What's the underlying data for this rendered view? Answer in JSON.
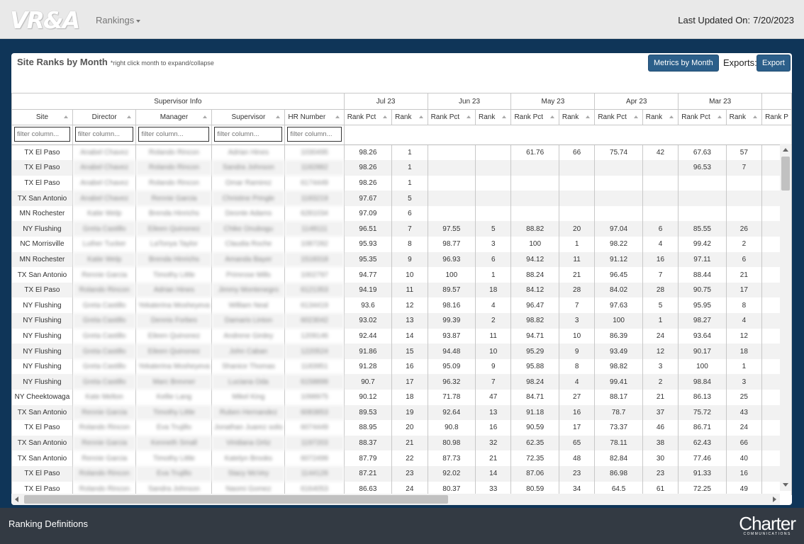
{
  "nav": {
    "logo": "VR&A",
    "rankings_label": "Rankings",
    "last_updated_label": "Last Updated On:",
    "last_updated_value": "7/20/2023"
  },
  "panel": {
    "title": "Site Ranks by Month",
    "note": "*right click month to expand/collapse",
    "metrics_button": "Metrics by Month",
    "exports_label": "Exports:",
    "export_button": "Export"
  },
  "table": {
    "group_info": "Supervisor Info",
    "months": [
      "Jul 23",
      "Jun 23",
      "May 23",
      "Apr 23",
      "Mar 23"
    ],
    "columns": {
      "site": "Site",
      "director": "Director",
      "manager": "Manager",
      "supervisor": "Supervisor",
      "hr": "HR Number",
      "rank_pct": "Rank Pct",
      "rank": "Rank",
      "partial": "Rank P"
    },
    "filter_placeholder": "filter column...",
    "rows": [
      {
        "site": "TX El Paso",
        "director": "Anabel Chavez",
        "manager": "Rolando Rincon",
        "supervisor": "Adrian Hines",
        "hr": "1030495",
        "v": [
          "98.26",
          "1",
          "",
          "",
          "61.76",
          "66",
          "75.74",
          "42",
          "67.63",
          "57"
        ]
      },
      {
        "site": "TX El Paso",
        "director": "Anabel Chavez",
        "manager": "Rolando Rincon",
        "supervisor": "Sandra Johnson",
        "hr": "1182882",
        "v": [
          "98.26",
          "1",
          "",
          "",
          "",
          "",
          "",
          "",
          "96.53",
          "7"
        ]
      },
      {
        "site": "TX El Paso",
        "director": "Anabel Chavez",
        "manager": "Rolando Rincon",
        "supervisor": "Omar Ramirez",
        "hr": "6174449",
        "v": [
          "98.26",
          "1",
          "",
          "",
          "",
          "",
          "",
          "",
          "",
          ""
        ]
      },
      {
        "site": "TX San Antonio",
        "director": "Anabel Chavez",
        "manager": "Rennie Garcia",
        "supervisor": "Christine Pringle",
        "hr": "1183219",
        "v": [
          "97.67",
          "5",
          "",
          "",
          "",
          "",
          "",
          "",
          "",
          ""
        ]
      },
      {
        "site": "MN Rochester",
        "director": "Katie Welp",
        "manager": "Brenda Hinrichs",
        "supervisor": "Deonte Adams",
        "hr": "6281034",
        "v": [
          "97.09",
          "6",
          "",
          "",
          "",
          "",
          "",
          "",
          "",
          ""
        ]
      },
      {
        "site": "NY Flushing",
        "director": "Greta Castillo",
        "manager": "Eileen Quinonez",
        "supervisor": "Chike Onubogu",
        "hr": "1148111",
        "v": [
          "96.51",
          "7",
          "97.55",
          "5",
          "88.82",
          "20",
          "97.04",
          "6",
          "85.55",
          "26"
        ]
      },
      {
        "site": "NC Morrisville",
        "director": "Luther Tucker",
        "manager": "LaTonya Taylor",
        "supervisor": "Claudia Roche",
        "hr": "1087282",
        "v": [
          "95.93",
          "8",
          "98.77",
          "3",
          "100",
          "1",
          "98.22",
          "4",
          "99.42",
          "2"
        ]
      },
      {
        "site": "MN Rochester",
        "director": "Katie Welp",
        "manager": "Brenda Hinrichs",
        "supervisor": "Amanda Bayer",
        "hr": "1518318",
        "v": [
          "95.35",
          "9",
          "96.93",
          "6",
          "94.12",
          "11",
          "91.12",
          "16",
          "97.11",
          "6"
        ]
      },
      {
        "site": "TX San Antonio",
        "director": "Rennie Garcia",
        "manager": "Timothy Little",
        "supervisor": "Primrose Mills",
        "hr": "1002797",
        "v": [
          "94.77",
          "10",
          "100",
          "1",
          "88.24",
          "21",
          "96.45",
          "7",
          "88.44",
          "21"
        ]
      },
      {
        "site": "TX El Paso",
        "director": "Rolando Rincon",
        "manager": "Adrian Hines",
        "supervisor": "Jimmy Montenegro",
        "hr": "6121353",
        "v": [
          "94.19",
          "11",
          "89.57",
          "18",
          "84.12",
          "28",
          "84.02",
          "28",
          "90.75",
          "17"
        ]
      },
      {
        "site": "NY Flushing",
        "director": "Greta Castillo",
        "manager": "Yekaterina Mosheyeva",
        "supervisor": "William Neal",
        "hr": "6134419",
        "v": [
          "93.6",
          "12",
          "98.16",
          "4",
          "96.47",
          "7",
          "97.63",
          "5",
          "95.95",
          "8"
        ]
      },
      {
        "site": "NY Flushing",
        "director": "Greta Castillo",
        "manager": "Dennis Forbes",
        "supervisor": "Damaris Linton",
        "hr": "6023042",
        "v": [
          "93.02",
          "13",
          "99.39",
          "2",
          "98.82",
          "3",
          "100",
          "1",
          "98.27",
          "4"
        ]
      },
      {
        "site": "NY Flushing",
        "director": "Greta Castillo",
        "manager": "Eileen Quinonez",
        "supervisor": "Andrene Girdey",
        "hr": "1209146",
        "v": [
          "92.44",
          "14",
          "93.87",
          "11",
          "94.71",
          "10",
          "86.39",
          "24",
          "93.64",
          "12"
        ]
      },
      {
        "site": "NY Flushing",
        "director": "Greta Castillo",
        "manager": "Eileen Quinonez",
        "supervisor": "John Caban",
        "hr": "1220524",
        "v": [
          "91.86",
          "15",
          "94.48",
          "10",
          "95.29",
          "9",
          "93.49",
          "12",
          "90.17",
          "18"
        ]
      },
      {
        "site": "NY Flushing",
        "director": "Greta Castillo",
        "manager": "Yekaterina Mosheyeva",
        "supervisor": "Shanice Thomas",
        "hr": "1183951",
        "v": [
          "91.28",
          "16",
          "95.09",
          "9",
          "95.88",
          "8",
          "98.82",
          "3",
          "100",
          "1"
        ]
      },
      {
        "site": "NY Flushing",
        "director": "Greta Castillo",
        "manager": "Marc Brevner",
        "supervisor": "Luciana Oda",
        "hr": "6158899",
        "v": [
          "90.7",
          "17",
          "96.32",
          "7",
          "98.24",
          "4",
          "99.41",
          "2",
          "98.84",
          "3"
        ]
      },
      {
        "site": "NY Cheektowaga",
        "director": "Kate Melton",
        "manager": "Kellie Lang",
        "supervisor": "Mikel King",
        "hr": "1098975",
        "v": [
          "90.12",
          "18",
          "71.78",
          "47",
          "84.71",
          "27",
          "88.17",
          "21",
          "86.13",
          "25"
        ]
      },
      {
        "site": "TX San Antonio",
        "director": "Rennie Garcia",
        "manager": "Timothy Little",
        "supervisor": "Ruben Hernandez",
        "hr": "6083853",
        "v": [
          "89.53",
          "19",
          "92.64",
          "13",
          "91.18",
          "16",
          "78.7",
          "37",
          "75.72",
          "43"
        ]
      },
      {
        "site": "TX El Paso",
        "director": "Rolando Rincon",
        "manager": "Eva Trujillo",
        "supervisor": "Jonathan Juarez solis",
        "hr": "6074449",
        "v": [
          "88.95",
          "20",
          "90.8",
          "16",
          "90.59",
          "17",
          "73.37",
          "46",
          "86.71",
          "24"
        ]
      },
      {
        "site": "TX San Antonio",
        "director": "Rennie Garcia",
        "manager": "Kenneth Small",
        "supervisor": "Viridiana Ortiz",
        "hr": "1197203",
        "v": [
          "88.37",
          "21",
          "80.98",
          "32",
          "62.35",
          "65",
          "78.11",
          "38",
          "62.43",
          "66"
        ]
      },
      {
        "site": "TX San Antonio",
        "director": "Rennie Garcia",
        "manager": "Timothy Little",
        "supervisor": "Katelyn Brooks",
        "hr": "6072499",
        "v": [
          "87.79",
          "22",
          "87.73",
          "21",
          "72.35",
          "48",
          "82.84",
          "30",
          "77.46",
          "40"
        ]
      },
      {
        "site": "TX El Paso",
        "director": "Rolando Rincon",
        "manager": "Eva Trujillo",
        "supervisor": "Stacy McVey",
        "hr": "1144128",
        "v": [
          "87.21",
          "23",
          "92.02",
          "14",
          "87.06",
          "23",
          "86.98",
          "23",
          "91.33",
          "16"
        ]
      },
      {
        "site": "TX El Paso",
        "director": "Rolando Rincon",
        "manager": "Sandra Johnson",
        "supervisor": "Naomi Gomez",
        "hr": "6164053",
        "v": [
          "86.63",
          "24",
          "80.37",
          "33",
          "80.59",
          "34",
          "64.5",
          "61",
          "72.25",
          "49"
        ]
      }
    ]
  },
  "footer": {
    "link": "Ranking Definitions",
    "brand": "Charter",
    "brand_sub": "COMMUNICATIONS"
  }
}
